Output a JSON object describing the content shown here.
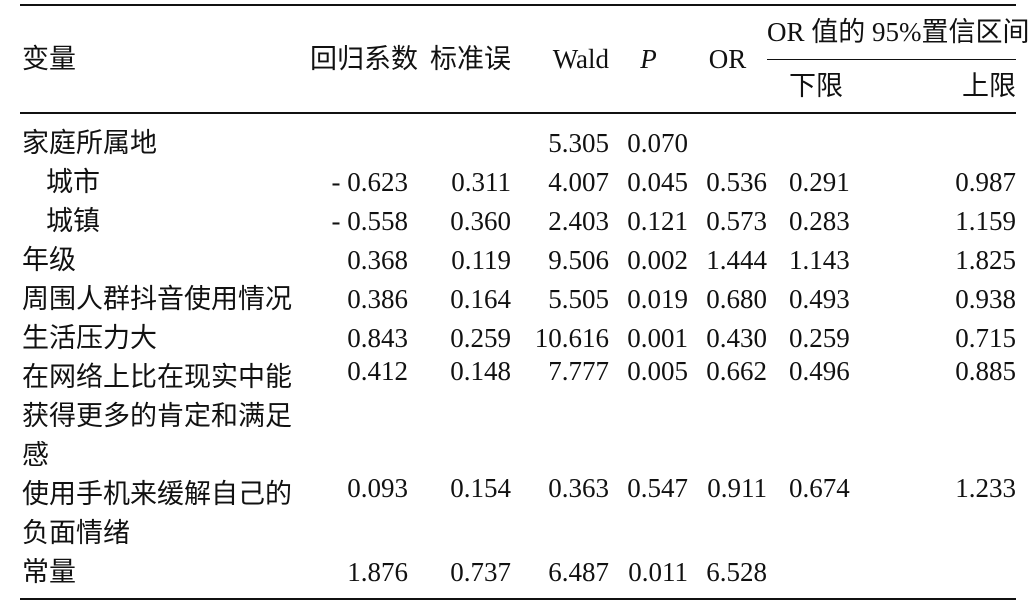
{
  "table": {
    "headers": {
      "variable": "变量",
      "coef": "回归系数",
      "se": "标准误",
      "wald": "Wald",
      "p": "P",
      "or": "OR",
      "ci_group": "OR 值的 95%置信区间",
      "ci_lower": "下限",
      "ci_upper": "上限"
    },
    "rows": [
      {
        "label": "家庭所属地",
        "sub": false,
        "coef": "",
        "se": "",
        "wald": "5.305",
        "p": "0.070",
        "or": "",
        "lower": "",
        "upper": ""
      },
      {
        "label": "城市",
        "sub": true,
        "coef": "- 0.623",
        "se": "0.311",
        "wald": "4.007",
        "p": "0.045",
        "or": "0.536",
        "lower": "0.291",
        "upper": "0.987"
      },
      {
        "label": "城镇",
        "sub": true,
        "coef": "- 0.558",
        "se": "0.360",
        "wald": "2.403",
        "p": "0.121",
        "or": "0.573",
        "lower": "0.283",
        "upper": "1.159"
      },
      {
        "label": "年级",
        "sub": false,
        "coef": "0.368",
        "se": "0.119",
        "wald": "9.506",
        "p": "0.002",
        "or": "1.444",
        "lower": "1.143",
        "upper": "1.825"
      },
      {
        "label": "周围人群抖音使用情况",
        "sub": false,
        "coef": "0.386",
        "se": "0.164",
        "wald": "5.505",
        "p": "0.019",
        "or": "0.680",
        "lower": "0.493",
        "upper": "0.938"
      },
      {
        "label": "生活压力大",
        "sub": false,
        "coef": "0.843",
        "se": "0.259",
        "wald": "10.616",
        "p": "0.001",
        "or": "0.430",
        "lower": "0.259",
        "upper": "0.715"
      },
      {
        "label": "在网络上比在现实中能获得更多的肯定和满足感",
        "sub": false,
        "coef": "0.412",
        "se": "0.148",
        "wald": "7.777",
        "p": "0.005",
        "or": "0.662",
        "lower": "0.496",
        "upper": "0.885"
      },
      {
        "label": "使用手机来缓解自己的负面情绪",
        "sub": false,
        "coef": "0.093",
        "se": "0.154",
        "wald": "0.363",
        "p": "0.547",
        "or": "0.911",
        "lower": "0.674",
        "upper": "1.233"
      },
      {
        "label": "常量",
        "sub": false,
        "coef": "1.876",
        "se": "0.737",
        "wald": "6.487",
        "p": "0.011",
        "or": "6.528",
        "lower": "",
        "upper": ""
      }
    ]
  }
}
